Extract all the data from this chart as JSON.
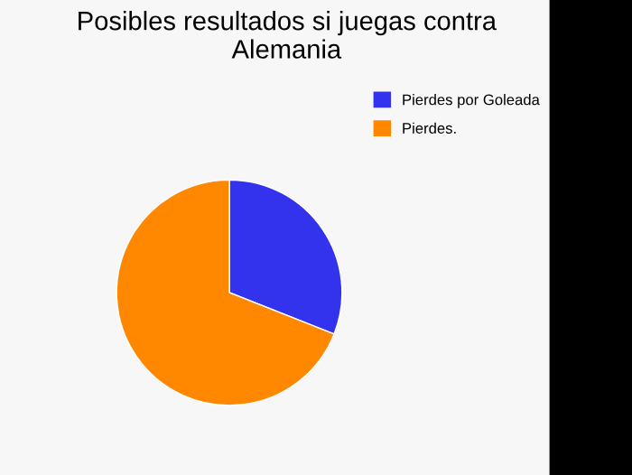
{
  "chart_data": {
    "type": "pie",
    "title": "Posibles resultados si juegas contra Alemania",
    "categories": [
      "Pierdes por Goleada",
      "Pierdes."
    ],
    "values": [
      31,
      69
    ],
    "colors": [
      "#3333ee",
      "#ff8800"
    ],
    "legend": "top right"
  }
}
